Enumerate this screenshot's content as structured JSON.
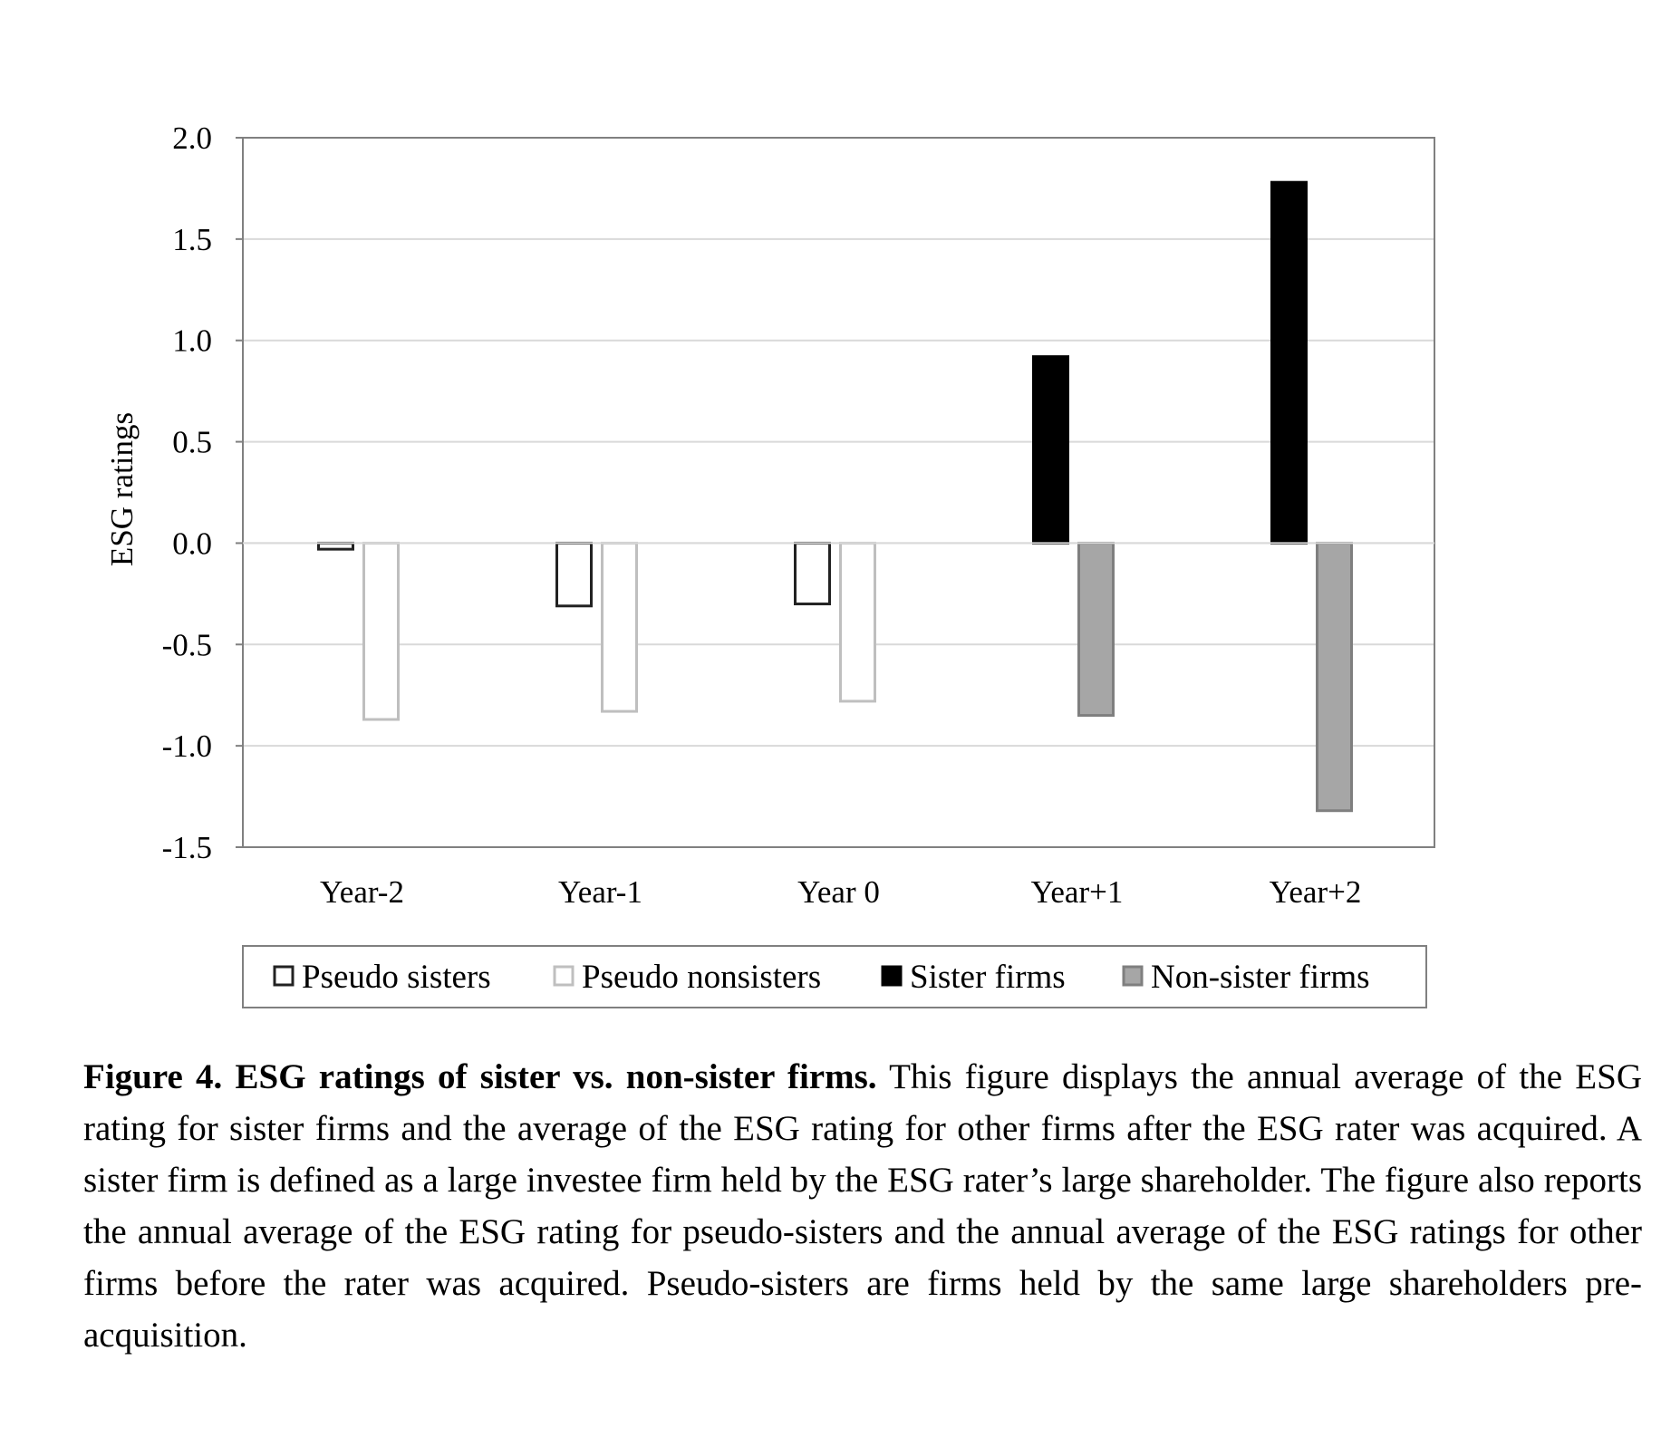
{
  "chart_data": {
    "type": "bar",
    "categories": [
      "Year-2",
      "Year-1",
      "Year 0",
      "Year+1",
      "Year+2"
    ],
    "series": [
      {
        "name": "Pseudo sisters",
        "values": [
          -0.03,
          -0.31,
          -0.3,
          null,
          null
        ],
        "fill": "#ffffff",
        "stroke": "#222222"
      },
      {
        "name": "Pseudo nonsisters",
        "values": [
          -0.87,
          -0.83,
          -0.78,
          null,
          null
        ],
        "fill": "#ffffff",
        "stroke": "#bfbfbf"
      },
      {
        "name": "Sister firms",
        "values": [
          null,
          null,
          null,
          0.92,
          1.78
        ],
        "fill": "#000000",
        "stroke": "#000000"
      },
      {
        "name": "Non-sister firms",
        "values": [
          null,
          null,
          null,
          -0.85,
          -1.32
        ],
        "fill": "#a6a6a6",
        "stroke": "#7f7f7f"
      }
    ],
    "xlabel": "",
    "ylabel": "ESG ratings",
    "ylim": [
      -1.5,
      2.0
    ],
    "yticks": [
      "2.0",
      "1.5",
      "1.0",
      "0.5",
      "0.0",
      "-0.5",
      "-1.0",
      "-1.5"
    ],
    "ytick_values": [
      2.0,
      1.5,
      1.0,
      0.5,
      0.0,
      -0.5,
      -1.0,
      -1.5
    ],
    "grid": true,
    "legend_position": "bottom"
  },
  "caption": {
    "title": "Figure 4. ESG ratings of sister vs. non-sister firms.",
    "body": " This figure displays the annual average of the ESG rating for sister firms and the average of the ESG rating for other firms after the ESG rater was acquired. A sister firm is defined as a large investee firm held by the ESG rater’s large shareholder. The figure also reports the annual average of the ESG rating for pseudo-sisters and the annual average of the ESG ratings for other firms before the rater was acquired. Pseudo-sisters are firms held by the same large shareholders pre-acquisition."
  }
}
